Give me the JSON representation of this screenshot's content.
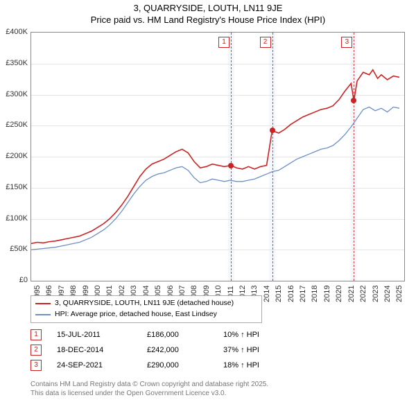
{
  "title": {
    "line1": "3, QUARRYSIDE, LOUTH, LN11 9JE",
    "line2": "Price paid vs. HM Land Registry's House Price Index (HPI)",
    "fontsize": 13
  },
  "chart": {
    "type": "line",
    "background_color": "#ffffff",
    "grid_color": "#e5e5e5",
    "border_color": "#888888",
    "x": {
      "min": 1995,
      "max": 2025.9,
      "ticks": [
        1995,
        1996,
        1997,
        1998,
        1999,
        2000,
        2001,
        2002,
        2003,
        2004,
        2005,
        2006,
        2007,
        2008,
        2009,
        2010,
        2011,
        2012,
        2013,
        2014,
        2015,
        2016,
        2017,
        2018,
        2019,
        2020,
        2021,
        2022,
        2023,
        2024,
        2025
      ]
    },
    "y": {
      "min": 0,
      "max": 400000,
      "step": 50000,
      "labels": [
        "£0",
        "£50K",
        "£100K",
        "£150K",
        "£200K",
        "£250K",
        "£300K",
        "£350K",
        "£400K"
      ]
    },
    "highlight_bands": [
      {
        "from": 2011.3,
        "to": 2011.8
      },
      {
        "from": 2014.7,
        "to": 2015.2
      },
      {
        "from": 2021.5,
        "to": 2022.0
      }
    ],
    "event_lines": [
      {
        "x": 2011.54,
        "label": "1"
      },
      {
        "x": 2014.96,
        "label": "2"
      },
      {
        "x": 2021.73,
        "label": "3"
      }
    ],
    "series_red": {
      "name": "3, QUARRYSIDE, LOUTH, LN11 9JE (detached house)",
      "color": "#cc2222",
      "width": 1.6,
      "points": [
        [
          1995.0,
          60000
        ],
        [
          1995.5,
          62000
        ],
        [
          1996.0,
          61000
        ],
        [
          1996.5,
          63000
        ],
        [
          1997.0,
          64000
        ],
        [
          1997.5,
          66000
        ],
        [
          1998.0,
          68000
        ],
        [
          1998.5,
          70000
        ],
        [
          1999.0,
          72000
        ],
        [
          1999.5,
          76000
        ],
        [
          2000.0,
          80000
        ],
        [
          2000.5,
          86000
        ],
        [
          2001.0,
          92000
        ],
        [
          2001.5,
          100000
        ],
        [
          2002.0,
          110000
        ],
        [
          2002.5,
          122000
        ],
        [
          2003.0,
          136000
        ],
        [
          2003.5,
          152000
        ],
        [
          2004.0,
          168000
        ],
        [
          2004.5,
          180000
        ],
        [
          2005.0,
          188000
        ],
        [
          2005.5,
          192000
        ],
        [
          2006.0,
          196000
        ],
        [
          2006.5,
          202000
        ],
        [
          2007.0,
          208000
        ],
        [
          2007.5,
          212000
        ],
        [
          2008.0,
          206000
        ],
        [
          2008.5,
          192000
        ],
        [
          2009.0,
          182000
        ],
        [
          2009.5,
          184000
        ],
        [
          2010.0,
          188000
        ],
        [
          2010.5,
          186000
        ],
        [
          2011.0,
          184000
        ],
        [
          2011.54,
          186000
        ],
        [
          2012.0,
          182000
        ],
        [
          2012.5,
          180000
        ],
        [
          2013.0,
          184000
        ],
        [
          2013.5,
          180000
        ],
        [
          2014.0,
          184000
        ],
        [
          2014.5,
          186000
        ],
        [
          2014.96,
          242000
        ],
        [
          2015.5,
          238000
        ],
        [
          2016.0,
          244000
        ],
        [
          2016.5,
          252000
        ],
        [
          2017.0,
          258000
        ],
        [
          2017.5,
          264000
        ],
        [
          2018.0,
          268000
        ],
        [
          2018.5,
          272000
        ],
        [
          2019.0,
          276000
        ],
        [
          2019.5,
          278000
        ],
        [
          2020.0,
          282000
        ],
        [
          2020.5,
          292000
        ],
        [
          2021.0,
          306000
        ],
        [
          2021.5,
          318000
        ],
        [
          2021.73,
          290000
        ],
        [
          2022.0,
          322000
        ],
        [
          2022.5,
          336000
        ],
        [
          2023.0,
          332000
        ],
        [
          2023.3,
          340000
        ],
        [
          2023.7,
          326000
        ],
        [
          2024.0,
          332000
        ],
        [
          2024.5,
          324000
        ],
        [
          2025.0,
          330000
        ],
        [
          2025.5,
          328000
        ]
      ],
      "sale_dots": [
        [
          2011.54,
          186000
        ],
        [
          2014.96,
          242000
        ],
        [
          2021.73,
          290000
        ]
      ]
    },
    "series_blue": {
      "name": "HPI: Average price, detached house, East Lindsey",
      "color": "#6d8fc5",
      "width": 1.3,
      "points": [
        [
          1995.0,
          50000
        ],
        [
          1995.5,
          51000
        ],
        [
          1996.0,
          52000
        ],
        [
          1996.5,
          53000
        ],
        [
          1997.0,
          54000
        ],
        [
          1997.5,
          56000
        ],
        [
          1998.0,
          58000
        ],
        [
          1998.5,
          60000
        ],
        [
          1999.0,
          62000
        ],
        [
          1999.5,
          66000
        ],
        [
          2000.0,
          70000
        ],
        [
          2000.5,
          76000
        ],
        [
          2001.0,
          82000
        ],
        [
          2001.5,
          90000
        ],
        [
          2002.0,
          100000
        ],
        [
          2002.5,
          112000
        ],
        [
          2003.0,
          126000
        ],
        [
          2003.5,
          140000
        ],
        [
          2004.0,
          152000
        ],
        [
          2004.5,
          162000
        ],
        [
          2005.0,
          168000
        ],
        [
          2005.5,
          172000
        ],
        [
          2006.0,
          174000
        ],
        [
          2006.5,
          178000
        ],
        [
          2007.0,
          182000
        ],
        [
          2007.5,
          184000
        ],
        [
          2008.0,
          178000
        ],
        [
          2008.5,
          166000
        ],
        [
          2009.0,
          158000
        ],
        [
          2009.5,
          160000
        ],
        [
          2010.0,
          164000
        ],
        [
          2010.5,
          162000
        ],
        [
          2011.0,
          160000
        ],
        [
          2011.5,
          162000
        ],
        [
          2012.0,
          160000
        ],
        [
          2012.5,
          160000
        ],
        [
          2013.0,
          162000
        ],
        [
          2013.5,
          164000
        ],
        [
          2014.0,
          168000
        ],
        [
          2014.5,
          172000
        ],
        [
          2015.0,
          176000
        ],
        [
          2015.5,
          178000
        ],
        [
          2016.0,
          184000
        ],
        [
          2016.5,
          190000
        ],
        [
          2017.0,
          196000
        ],
        [
          2017.5,
          200000
        ],
        [
          2018.0,
          204000
        ],
        [
          2018.5,
          208000
        ],
        [
          2019.0,
          212000
        ],
        [
          2019.5,
          214000
        ],
        [
          2020.0,
          218000
        ],
        [
          2020.5,
          226000
        ],
        [
          2021.0,
          236000
        ],
        [
          2021.5,
          248000
        ],
        [
          2022.0,
          262000
        ],
        [
          2022.5,
          276000
        ],
        [
          2023.0,
          280000
        ],
        [
          2023.5,
          274000
        ],
        [
          2024.0,
          278000
        ],
        [
          2024.5,
          272000
        ],
        [
          2025.0,
          280000
        ],
        [
          2025.5,
          278000
        ]
      ]
    }
  },
  "legend": {
    "items": [
      {
        "color": "#cc2222",
        "label": "3, QUARRYSIDE, LOUTH, LN11 9JE (detached house)"
      },
      {
        "color": "#6d8fc5",
        "label": "HPI: Average price, detached house, East Lindsey"
      }
    ]
  },
  "sales_table": {
    "rows": [
      {
        "n": "1",
        "date": "15-JUL-2011",
        "price": "£186,000",
        "pct": "10% ↑ HPI"
      },
      {
        "n": "2",
        "date": "18-DEC-2014",
        "price": "£242,000",
        "pct": "37% ↑ HPI"
      },
      {
        "n": "3",
        "date": "24-SEP-2021",
        "price": "£290,000",
        "pct": "18% ↑ HPI"
      }
    ]
  },
  "footer": {
    "line1": "Contains HM Land Registry data © Crown copyright and database right 2025.",
    "line2": "This data is licensed under the Open Government Licence v3.0."
  }
}
